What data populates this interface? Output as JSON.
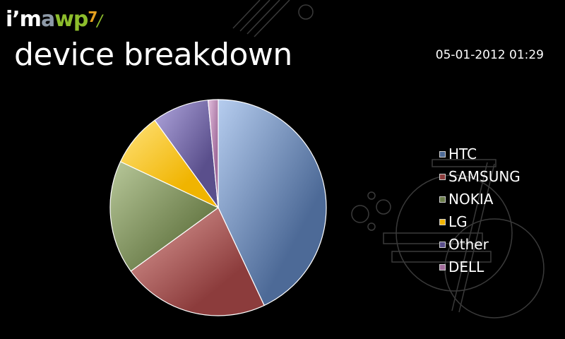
{
  "header": {
    "logo": {
      "part_im": "i’m",
      "part_a": "a",
      "part_wp": "wp",
      "part_seven": "7",
      "part_slash": "/"
    },
    "title": "device breakdown",
    "timestamp": "05-01-2012 01:29"
  },
  "chart_data": {
    "type": "pie",
    "title": "",
    "start_angle_deg": 0,
    "direction": "clockwise",
    "series": [
      {
        "name": "HTC",
        "value": 43.0,
        "color": "#4d6a97",
        "highlight": "#b6cdef"
      },
      {
        "name": "SAMSUNG",
        "value": 22.0,
        "color": "#8c3c3c",
        "highlight": "#e0a09c"
      },
      {
        "name": "NOKIA",
        "value": 17.0,
        "color": "#6b7d4a",
        "highlight": "#b8c89a"
      },
      {
        "name": "LG",
        "value": 8.0,
        "color": "#f0b400",
        "highlight": "#ffe27a"
      },
      {
        "name": "Other",
        "value": 8.5,
        "color": "#5a4f8c",
        "highlight": "#b0a6dd"
      },
      {
        "name": "DELL",
        "value": 1.5,
        "color": "#a06a9a",
        "highlight": "#e3c0de"
      }
    ],
    "legend_position": "right"
  }
}
